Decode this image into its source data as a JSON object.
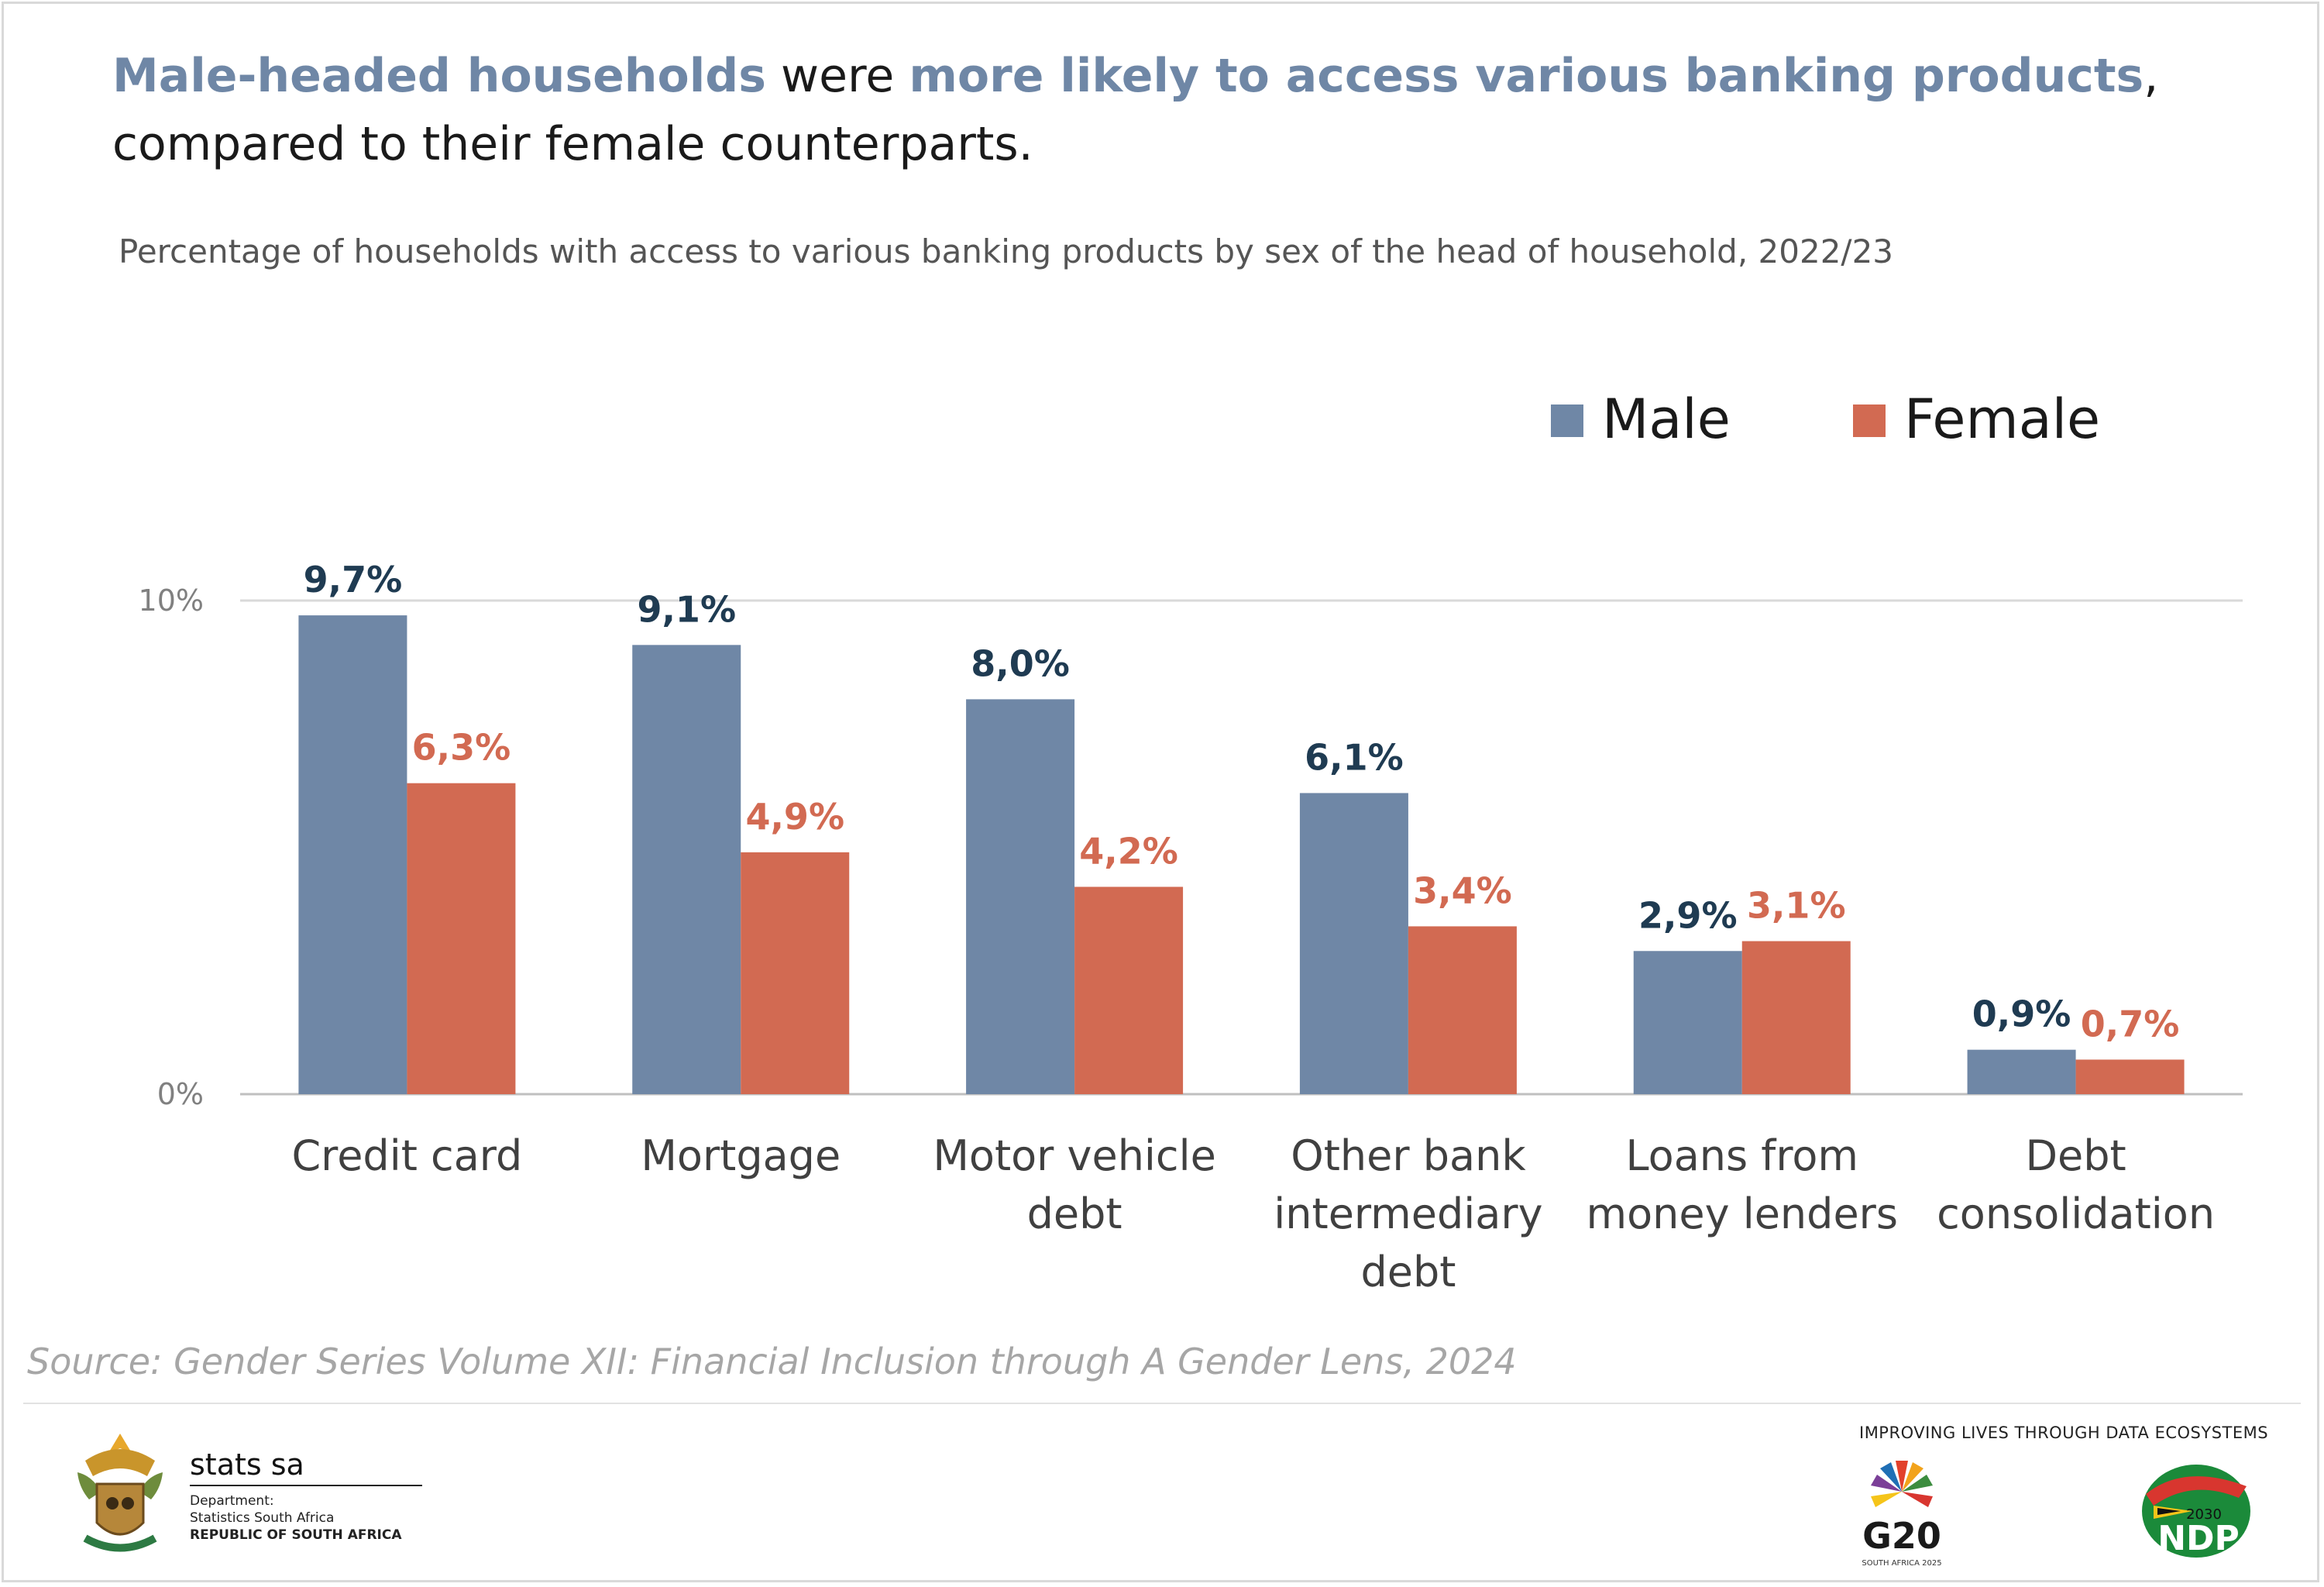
{
  "headline": {
    "part1": "Male-headed households",
    "part2": " were ",
    "part3": "more likely to access various banking products",
    "part4": ", compared to their female counterparts."
  },
  "subtitle": "Percentage of households with access to various banking products by sex of the head of household, 2022/23",
  "chart_data": {
    "type": "bar",
    "title": "Percentage of households with access to various banking products by sex of the head of household, 2022/23",
    "xlabel": "",
    "ylabel": "",
    "ylim": [
      0,
      10
    ],
    "yticks": [
      {
        "value": 0,
        "label": "0%"
      },
      {
        "value": 10,
        "label": "10%"
      }
    ],
    "grid": true,
    "legend_position": "top-right",
    "categories": [
      [
        "Credit card"
      ],
      [
        "Mortgage"
      ],
      [
        "Motor vehicle",
        "debt"
      ],
      [
        "Other bank",
        "intermediary",
        "debt"
      ],
      [
        "Loans from",
        "money lenders"
      ],
      [
        "Debt",
        "consolidation"
      ]
    ],
    "series": [
      {
        "name": "Male",
        "color": "#6f87a6",
        "label_color": "#1f3b52",
        "values": [
          9.7,
          9.1,
          8.0,
          6.1,
          2.9,
          0.9
        ],
        "labels": [
          "9,7%",
          "9,1%",
          "8,0%",
          "6,1%",
          "2,9%",
          "0,9%"
        ]
      },
      {
        "name": "Female",
        "color": "#d26a52",
        "label_color": "#d26a52",
        "values": [
          6.3,
          4.9,
          4.2,
          3.4,
          3.1,
          0.7
        ],
        "labels": [
          "6,3%",
          "4,9%",
          "4,2%",
          "3,4%",
          "3,1%",
          "0,7%"
        ]
      }
    ]
  },
  "source": "Source: Gender Series Volume XII: Financial Inclusion through A Gender Lens, 2024",
  "footer": {
    "org_name": "stats sa",
    "dept_line1": "Department:",
    "dept_line2": "Statistics South Africa",
    "dept_line3": "REPUBLIC OF SOUTH AFRICA",
    "tagline": "IMPROVING LIVES THROUGH DATA ECOSYSTEMS",
    "g20_text": "G20",
    "g20_sub": "SOUTH AFRICA 2025",
    "ndp_text": "NDP",
    "ndp_year": "2030"
  }
}
